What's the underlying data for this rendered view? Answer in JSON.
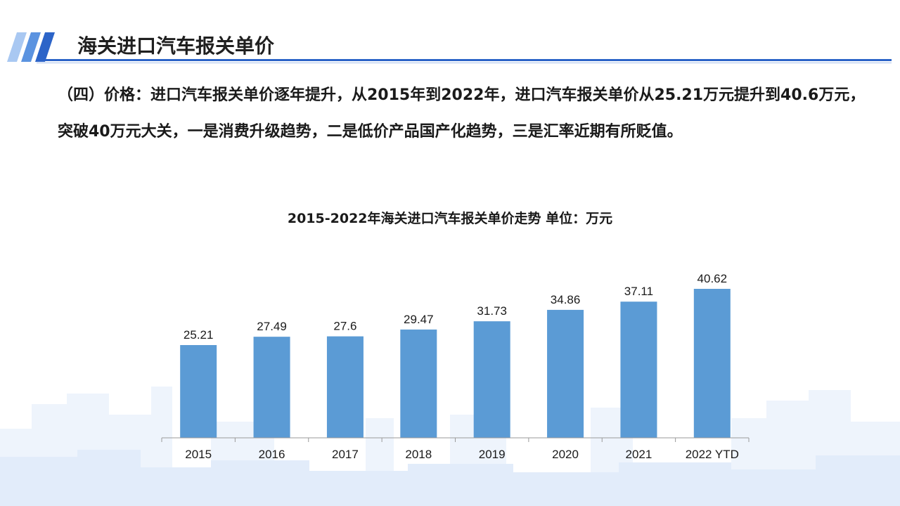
{
  "header": {
    "title": "海关进口汽车报关单价"
  },
  "paragraph": "（四）价格：进口汽车报关单价逐年提升，从2015年到2022年，进口汽车报关单价从25.21万元提升到40.6万元，突破40万元大关，一是消费升级趋势，二是低价产品国产化趋势，三是汇率近期有所贬值。",
  "colors": {
    "accent": "#2c64c8",
    "bar": "#5b9bd5",
    "skyline": "#eaf2fc"
  },
  "chart_data": {
    "type": "bar",
    "title": "2015-2022年海关进口汽车报关单价走势 单位：万元",
    "categories": [
      "2015",
      "2016",
      "2017",
      "2018",
      "2019",
      "2020",
      "2021",
      "2022 YTD"
    ],
    "values": [
      25.21,
      27.49,
      27.6,
      29.47,
      31.73,
      34.86,
      37.11,
      40.62
    ],
    "value_labels": [
      "25.21",
      "27.49",
      "27.6",
      "29.47",
      "31.73",
      "34.86",
      "37.11",
      "40.62"
    ],
    "ylim": [
      0,
      45
    ],
    "grid": false,
    "legend": "none"
  }
}
